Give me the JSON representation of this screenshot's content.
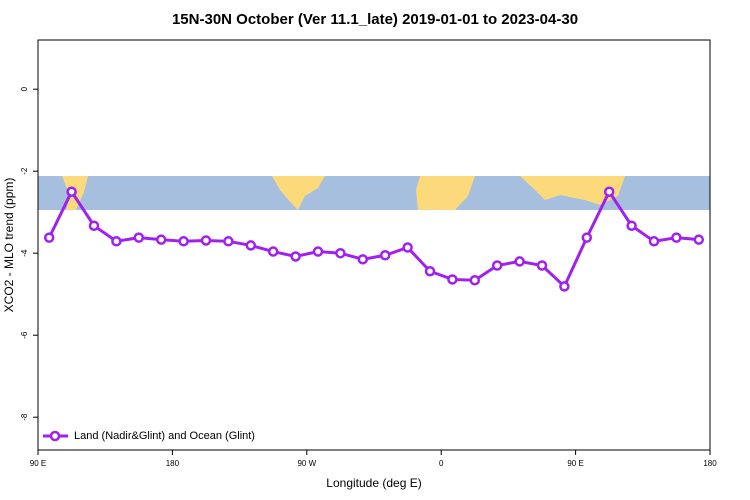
{
  "chart_data": {
    "type": "line",
    "title": "15N-30N October (Ver 11.1_late)   2019-01-01 to 2023-04-30",
    "xlabel": "Longitude (deg E)",
    "ylabel": "XCO2 - MLO trend (ppm)",
    "x": [
      97.5,
      112.5,
      127.5,
      142.5,
      157.5,
      172.5,
      187.5,
      202.5,
      217.5,
      232.5,
      247.5,
      262.5,
      277.5,
      292.5,
      307.5,
      322.5,
      337.5,
      352.5,
      367.5,
      382.5,
      397.5,
      412.5,
      427.5,
      442.5,
      457.5,
      472.5,
      487.5,
      502.5,
      517.5,
      532.5
    ],
    "series": [
      {
        "name": "Land (Nadir&Glint) and Ocean (Glint)",
        "color": "#a020f0",
        "values": [
          -3.62,
          -2.5,
          -3.33,
          -3.71,
          -3.62,
          -3.67,
          -3.71,
          -3.69,
          -3.71,
          -3.81,
          -3.96,
          -4.08,
          -3.96,
          -4.0,
          -4.15,
          -4.05,
          -3.86,
          -4.44,
          -4.64,
          -4.66,
          -4.3,
          -4.2,
          -4.3,
          -4.81,
          -3.62,
          -2.5,
          -3.33,
          -3.71,
          -3.62,
          -3.67
        ]
      }
    ],
    "xlim": [
      90,
      540
    ],
    "xticks": [
      {
        "value": 90,
        "label": "90 E"
      },
      180,
      {
        "value": 270,
        "label": "90 W"
      },
      {
        "value": 360,
        "label": "0"
      },
      {
        "value": 450,
        "label": "90 E"
      },
      {
        "value": 540,
        "label": "180"
      }
    ],
    "ylim": [
      -8.8,
      1.2
    ],
    "yticks": [
      0,
      -2,
      -4,
      -6,
      -8
    ],
    "legend": "bottom-left"
  }
}
